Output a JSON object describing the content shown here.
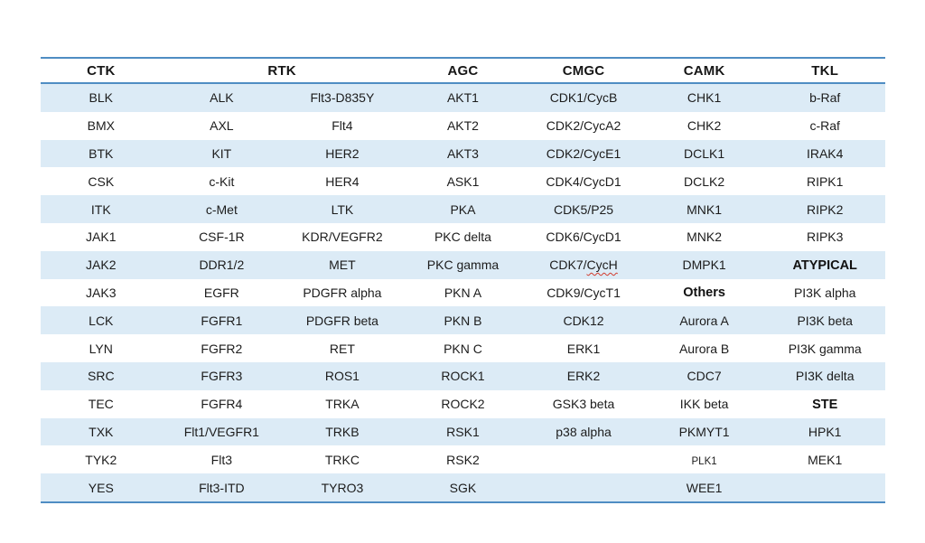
{
  "colors": {
    "band_blue": "#dcebf6",
    "border_blue": "#4f8dc3",
    "text": "#1c1c1c",
    "spellcheck_red": "#d13b2e",
    "page_background": "#ffffff"
  },
  "table": {
    "headers": [
      {
        "label": "CTK",
        "colspan": 1
      },
      {
        "label": "RTK",
        "colspan": 2
      },
      {
        "label": "AGC",
        "colspan": 1
      },
      {
        "label": "CMGC",
        "colspan": 1
      },
      {
        "label": "CAMK",
        "colspan": 1
      },
      {
        "label": "TKL",
        "colspan": 1
      }
    ],
    "rows": [
      [
        "BLK",
        "ALK",
        "Flt3-D835Y",
        "AKT1",
        "CDK1/CycB",
        "CHK1",
        "b-Raf"
      ],
      [
        "BMX",
        "AXL",
        "Flt4",
        "AKT2",
        "CDK2/CycA2",
        "CHK2",
        "c-Raf"
      ],
      [
        "BTK",
        "KIT",
        "HER2",
        "AKT3",
        "CDK2/CycE1",
        "DCLK1",
        "IRAK4"
      ],
      [
        "CSK",
        "c-Kit",
        "HER4",
        "ASK1",
        "CDK4/CycD1",
        "DCLK2",
        "RIPK1"
      ],
      [
        "ITK",
        "c-Met",
        "LTK",
        "PKA",
        "CDK5/P25",
        "MNK1",
        "RIPK2"
      ],
      [
        "JAK1",
        "CSF-1R",
        "KDR/VEGFR2",
        "PKC delta",
        "CDK6/CycD1",
        "MNK2",
        "RIPK3"
      ],
      [
        "JAK2",
        "DDR1/2",
        "MET",
        "PKC gamma",
        {
          "text": "CDK7/CycH",
          "squiggle": "CycH"
        },
        "DMPK1",
        {
          "text": "ATYPICAL",
          "bold": true
        }
      ],
      [
        "JAK3",
        "EGFR",
        "PDGFR alpha",
        "PKN A",
        "CDK9/CycT1",
        {
          "text": "Others",
          "bold": true
        },
        "PI3K alpha"
      ],
      [
        "LCK",
        "FGFR1",
        "PDGFR beta",
        "PKN B",
        "CDK12",
        "Aurora A",
        "PI3K beta"
      ],
      [
        "LYN",
        "FGFR2",
        "RET",
        "PKN C",
        "ERK1",
        "Aurora B",
        "PI3K gamma"
      ],
      [
        "SRC",
        "FGFR3",
        "ROS1",
        "ROCK1",
        "ERK2",
        "CDC7",
        "PI3K delta"
      ],
      [
        "TEC",
        "FGFR4",
        "TRKA",
        "ROCK2",
        "GSK3 beta",
        "IKK beta",
        {
          "text": "STE",
          "bold": true
        }
      ],
      [
        "TXK",
        "Flt1/VEGFR1",
        "TRKB",
        "RSK1",
        "p38 alpha",
        "PKMYT1",
        "HPK1"
      ],
      [
        "TYK2",
        "Flt3",
        "TRKC",
        "RSK2",
        "",
        {
          "text": "PLK1",
          "small": true
        },
        "MEK1"
      ],
      [
        "YES",
        "Flt3-ITD",
        "TYRO3",
        "SGK",
        "",
        "WEE1",
        ""
      ]
    ]
  }
}
